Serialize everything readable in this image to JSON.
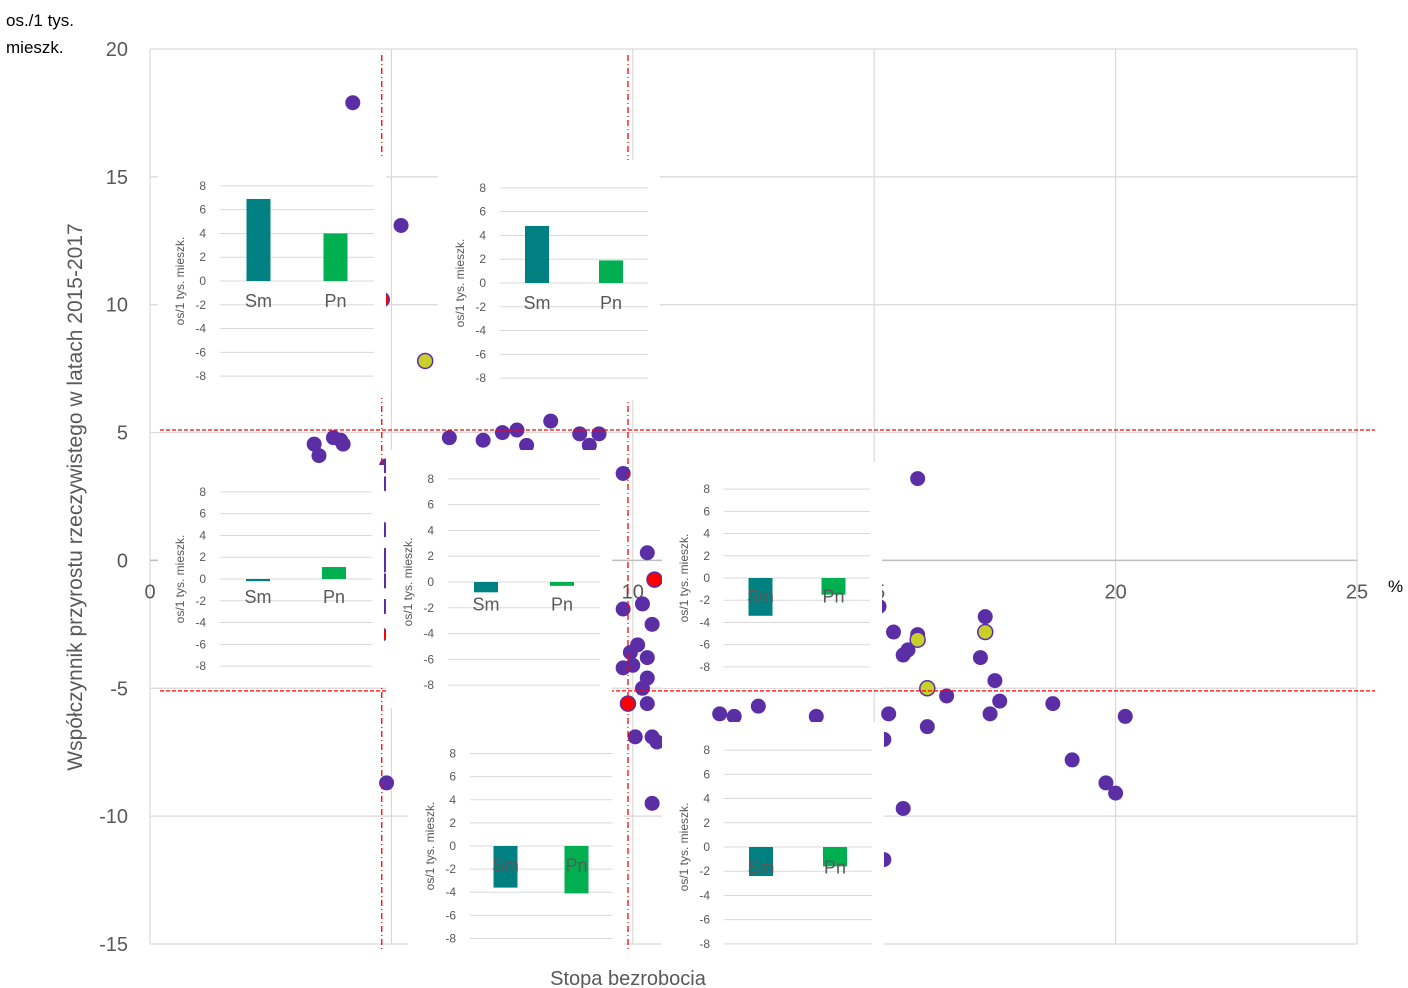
{
  "chart_data": [
    {
      "type": "scatter",
      "title": "",
      "xlabel": "Stopa bezrobocia",
      "ylabel": "Współczynnik przyrostu rzeczywistego w latach 2015-2017",
      "ylabel_unit": "os./1 tys. mieszk.",
      "xlabel_unit": "%",
      "xlim": [
        0,
        25
      ],
      "ylim": [
        -15,
        20
      ],
      "xticks": [
        0,
        5,
        10,
        15,
        20,
        25
      ],
      "yticks": [
        -15,
        -10,
        -5,
        0,
        5,
        10,
        15,
        20
      ],
      "grid": true,
      "reference_lines": {
        "x": [
          4.8,
          9.9
        ],
        "y": [
          5.1,
          -5.1
        ]
      },
      "colors": {
        "default": "#5b2ea6",
        "highlight_red": "#ff0000",
        "highlight_yellow": "#c8d02a",
        "grid": "#d9d9d9",
        "reference": "#ff0000"
      },
      "points": [
        {
          "x": 4.2,
          "y": 17.9
        },
        {
          "x": 5.2,
          "y": 13.1
        },
        {
          "x": 3.8,
          "y": 4.8
        },
        {
          "x": 3.95,
          "y": 4.7
        },
        {
          "x": 4.0,
          "y": 4.55
        },
        {
          "x": 3.4,
          "y": 4.55
        },
        {
          "x": 3.5,
          "y": 4.1
        },
        {
          "x": 6.2,
          "y": 4.8
        },
        {
          "x": 6.9,
          "y": 4.7
        },
        {
          "x": 7.3,
          "y": 5.0
        },
        {
          "x": 7.6,
          "y": 5.1
        },
        {
          "x": 8.3,
          "y": 5.45
        },
        {
          "x": 8.9,
          "y": 4.95
        },
        {
          "x": 9.3,
          "y": 4.95
        },
        {
          "x": 7.8,
          "y": 4.5
        },
        {
          "x": 9.1,
          "y": 4.5
        },
        {
          "x": 9.8,
          "y": 3.4
        },
        {
          "x": 15.0,
          "y": 2.6
        },
        {
          "x": 15.9,
          "y": 3.2
        },
        {
          "x": 4.9,
          "y": 3.7
        },
        {
          "x": 4.9,
          "y": 3.0
        },
        {
          "x": 4.85,
          "y": 1.2
        },
        {
          "x": 4.9,
          "y": 0.2
        },
        {
          "x": 4.8,
          "y": -0.2
        },
        {
          "x": 4.85,
          "y": -0.8
        },
        {
          "x": 4.85,
          "y": -1.8
        },
        {
          "x": 4.9,
          "y": -8.7
        },
        {
          "x": 10.3,
          "y": 0.3
        },
        {
          "x": 9.8,
          "y": -1.9
        },
        {
          "x": 10.2,
          "y": -1.7
        },
        {
          "x": 10.4,
          "y": -2.5
        },
        {
          "x": 10.1,
          "y": -3.3
        },
        {
          "x": 9.95,
          "y": -3.6
        },
        {
          "x": 9.8,
          "y": -4.2
        },
        {
          "x": 10.0,
          "y": -4.1
        },
        {
          "x": 10.3,
          "y": -3.8
        },
        {
          "x": 10.3,
          "y": -4.6
        },
        {
          "x": 10.2,
          "y": -5.0
        },
        {
          "x": 10.3,
          "y": -5.6
        },
        {
          "x": 10.05,
          "y": -6.9
        },
        {
          "x": 10.4,
          "y": -6.9
        },
        {
          "x": 10.5,
          "y": -7.1
        },
        {
          "x": 10.4,
          "y": -9.5
        },
        {
          "x": 11.8,
          "y": -6.0
        },
        {
          "x": 12.1,
          "y": -6.1
        },
        {
          "x": 12.6,
          "y": -5.7
        },
        {
          "x": 13.8,
          "y": -6.1
        },
        {
          "x": 15.1,
          "y": -1.8
        },
        {
          "x": 15.4,
          "y": -2.8
        },
        {
          "x": 15.6,
          "y": -3.7
        },
        {
          "x": 15.9,
          "y": -2.9
        },
        {
          "x": 15.7,
          "y": -3.5
        },
        {
          "x": 16.5,
          "y": -5.3
        },
        {
          "x": 17.2,
          "y": -3.8
        },
        {
          "x": 17.3,
          "y": -2.2
        },
        {
          "x": 17.5,
          "y": -4.7
        },
        {
          "x": 16.1,
          "y": -6.5
        },
        {
          "x": 15.3,
          "y": -6.0
        },
        {
          "x": 15.2,
          "y": -7.0
        },
        {
          "x": 15.6,
          "y": -9.7
        },
        {
          "x": 15.2,
          "y": -11.7
        },
        {
          "x": 17.4,
          "y": -6.0
        },
        {
          "x": 17.6,
          "y": -5.5
        },
        {
          "x": 18.7,
          "y": -5.6
        },
        {
          "x": 19.1,
          "y": -7.8
        },
        {
          "x": 19.8,
          "y": -8.7
        },
        {
          "x": 20.2,
          "y": -6.1
        },
        {
          "x": 20.0,
          "y": -9.1
        },
        {
          "x": 4.8,
          "y": 10.2,
          "h": "red"
        },
        {
          "x": 4.75,
          "y": -2.9,
          "h": "red"
        },
        {
          "x": 9.9,
          "y": -5.6,
          "h": "red"
        },
        {
          "x": 10.45,
          "y": -0.75,
          "h": "red"
        },
        {
          "x": 5.7,
          "y": 7.8,
          "h": "yellow"
        },
        {
          "x": 15.9,
          "y": -3.1,
          "h": "yellow"
        },
        {
          "x": 16.1,
          "y": -5.0,
          "h": "yellow"
        },
        {
          "x": 17.3,
          "y": -2.8,
          "h": "yellow"
        }
      ]
    },
    {
      "type": "bar",
      "id": "inset-top-left",
      "ylabel": "os/1 tys. mieszk.",
      "categories": [
        "Sm",
        "Pn"
      ],
      "values": [
        6.9,
        4.0
      ],
      "ylim": [
        -9,
        9
      ],
      "yticks": [
        8,
        6,
        4,
        2,
        0,
        -2,
        -4,
        -6,
        -8
      ],
      "colors": [
        "#008080",
        "#00b050"
      ]
    },
    {
      "type": "bar",
      "id": "inset-top-mid",
      "ylabel": "os/1 tys. mieszk.",
      "categories": [
        "Sm",
        "Pn"
      ],
      "values": [
        4.8,
        1.9
      ],
      "ylim": [
        -9,
        9
      ],
      "yticks": [
        8,
        6,
        4,
        2,
        0,
        -2,
        -4,
        -6,
        -8
      ],
      "colors": [
        "#008080",
        "#00b050"
      ]
    },
    {
      "type": "bar",
      "id": "inset-mid-left",
      "ylabel": "os/1 tys. mieszk.",
      "categories": [
        "Sm",
        "Pn"
      ],
      "values": [
        -0.2,
        1.1
      ],
      "ylim": [
        -9,
        9
      ],
      "yticks": [
        8,
        6,
        4,
        2,
        0,
        -2,
        -4,
        -6,
        -8
      ],
      "colors": [
        "#008080",
        "#00b050"
      ]
    },
    {
      "type": "bar",
      "id": "inset-mid-center",
      "ylabel": "os/1 tys. mieszk.",
      "categories": [
        "Sm",
        "Pn"
      ],
      "values": [
        -0.8,
        -0.3
      ],
      "ylim": [
        -9,
        9
      ],
      "yticks": [
        8,
        6,
        4,
        2,
        0,
        -2,
        -4,
        -6,
        -8
      ],
      "colors": [
        "#008080",
        "#00b050"
      ]
    },
    {
      "type": "bar",
      "id": "inset-mid-right",
      "ylabel": "os/1 tys. mieszk.",
      "categories": [
        "Sm",
        "Pn"
      ],
      "values": [
        -3.4,
        -1.5
      ],
      "ylim": [
        -9,
        9
      ],
      "yticks": [
        8,
        6,
        4,
        2,
        0,
        -2,
        -4,
        -6,
        -8
      ],
      "colors": [
        "#008080",
        "#00b050"
      ]
    },
    {
      "type": "bar",
      "id": "inset-bottom-center",
      "ylabel": "os/1 tys. mieszk.",
      "categories": [
        "Sm",
        "Pn"
      ],
      "values": [
        -3.6,
        -4.1
      ],
      "ylim": [
        -9,
        9
      ],
      "yticks": [
        8,
        6,
        4,
        2,
        0,
        -2,
        -4,
        -6,
        -8
      ],
      "colors": [
        "#008080",
        "#00b050"
      ]
    },
    {
      "type": "bar",
      "id": "inset-bottom-right",
      "ylabel": "os/1 tys. mieszk.",
      "categories": [
        "Sm",
        "Pn"
      ],
      "values": [
        -2.4,
        -1.6
      ],
      "ylim": [
        -9,
        9
      ],
      "yticks": [
        8,
        6,
        4,
        2,
        0,
        -2,
        -4,
        -6,
        -8
      ],
      "colors": [
        "#008080",
        "#00b050"
      ]
    }
  ]
}
